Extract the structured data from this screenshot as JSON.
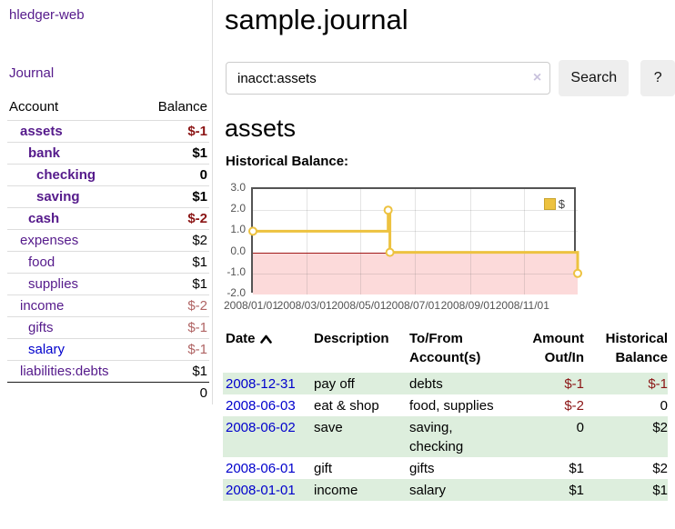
{
  "app": {
    "title": "hledger-web",
    "nav_journal": "Journal"
  },
  "sidebar": {
    "headers": {
      "account": "Account",
      "balance": "Balance"
    },
    "rows": [
      {
        "name": "assets",
        "balance": "$-1"
      },
      {
        "name": "bank",
        "balance": "$1"
      },
      {
        "name": "checking",
        "balance": "0"
      },
      {
        "name": "saving",
        "balance": "$1"
      },
      {
        "name": "cash",
        "balance": "$-2"
      },
      {
        "name": "expenses",
        "balance": "$2"
      },
      {
        "name": "food",
        "balance": "$1"
      },
      {
        "name": "supplies",
        "balance": "$1"
      },
      {
        "name": "income",
        "balance": "$-2"
      },
      {
        "name": "gifts",
        "balance": "$-1"
      },
      {
        "name": "salary",
        "balance": "$-1"
      },
      {
        "name": "liabilities:debts",
        "balance": "$1"
      }
    ],
    "total": "0"
  },
  "header": {
    "file_title": "sample.journal"
  },
  "search": {
    "query": "inacct:assets",
    "clear_icon": "×",
    "button_label": "Search",
    "help_label": "?"
  },
  "account_page": {
    "heading": "assets",
    "chart_title": "Historical Balance:"
  },
  "chart_data": {
    "type": "line",
    "title": "Historical Balance",
    "legend": "$",
    "legend_position": "top-right",
    "grid": true,
    "x_range": [
      "2008-01-01",
      "2008-12-31"
    ],
    "y_range": [
      -2,
      3
    ],
    "y_tick_values": [
      3,
      2,
      1,
      0,
      -1,
      -2
    ],
    "y_tick_labels": [
      "3.0",
      "2.0",
      "1.0",
      "0.0",
      "-1.0",
      "-2.0"
    ],
    "x_tick_dates": [
      "2008-01-01",
      "2008-03-01",
      "2008-05-01",
      "2008-07-01",
      "2008-09-01",
      "2008-11-01"
    ],
    "x_tick_labels": [
      "2008/01/01",
      "2008/03/01",
      "2008/05/01",
      "2008/07/01",
      "2008/09/01",
      "2008/11/01"
    ],
    "series": [
      {
        "name": "$",
        "step": true,
        "x": [
          "2008-01-01",
          "2008-06-01",
          "2008-06-03",
          "2008-12-31"
        ],
        "y": [
          1,
          2,
          0,
          -1
        ]
      }
    ],
    "colors": {
      "line": "#edc240",
      "marker_fill": "#ffffff",
      "negative_fill": "#fcdada",
      "zero_line": "#a01818",
      "border": "#545454"
    }
  },
  "register": {
    "headers": {
      "date": "Date",
      "description": "Description",
      "tofrom": "To/From Account(s)",
      "amount": "Amount Out/In",
      "balance": "Historical Balance"
    },
    "rows": [
      {
        "date": "2008-12-31",
        "description": "pay off",
        "accounts": "debts",
        "amount": "$-1",
        "balance": "$-1"
      },
      {
        "date": "2008-06-03",
        "description": "eat & shop",
        "accounts": "food, supplies",
        "amount": "$-2",
        "balance": "0"
      },
      {
        "date": "2008-06-02",
        "description": "save",
        "accounts": "saving, checking",
        "amount": "0",
        "balance": "$2"
      },
      {
        "date": "2008-06-01",
        "description": "gift",
        "accounts": "gifts",
        "amount": "$1",
        "balance": "$2"
      },
      {
        "date": "2008-01-01",
        "description": "income",
        "accounts": "salary",
        "amount": "$1",
        "balance": "$1"
      }
    ]
  },
  "colors": {
    "link_purple": "#551a8b",
    "link_blue": "#0000cc",
    "negative_strong": "#8b1515",
    "negative_muted": "#b06464",
    "row_stripe_green": "#ddeedd"
  }
}
